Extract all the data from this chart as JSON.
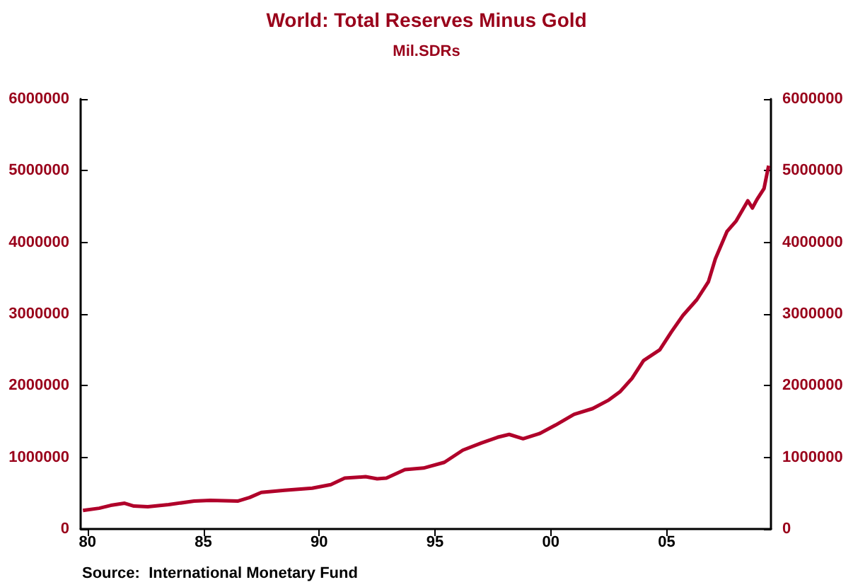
{
  "chart_data": {
    "type": "line",
    "title": "World: Total Reserves Minus Gold",
    "subtitle": "Mil.SDRs",
    "annotations": [
      "Source:  International Monetary Fund"
    ],
    "x": [
      1979.8,
      1980.5,
      1981.0,
      1981.6,
      1982.0,
      1982.6,
      1983.5,
      1984.6,
      1985.3,
      1986.5,
      1987.0,
      1987.5,
      1988.5,
      1989.7,
      1990.5,
      1991.1,
      1992.0,
      1992.5,
      1992.9,
      1993.7,
      1994.5,
      1995.4,
      1996.2,
      1997.0,
      1997.7,
      1998.2,
      1998.8,
      1999.5,
      2000.2,
      2001.0,
      2001.8,
      2002.5,
      2003.0,
      2003.5,
      2004.0,
      2004.7,
      2005.2,
      2005.7,
      2006.3,
      2006.8,
      2007.1,
      2007.6,
      2008.0,
      2008.5,
      2008.7,
      2008.9,
      2009.2,
      2009.4
    ],
    "series": [
      {
        "color": "#b0002a",
        "values": [
          260000,
          290000,
          330000,
          360000,
          320000,
          310000,
          340000,
          390000,
          400000,
          390000,
          440000,
          510000,
          540000,
          570000,
          620000,
          710000,
          730000,
          700000,
          710000,
          830000,
          850000,
          930000,
          1100000,
          1200000,
          1280000,
          1320000,
          1260000,
          1330000,
          1450000,
          1600000,
          1680000,
          1800000,
          1920000,
          2100000,
          2350000,
          2500000,
          2750000,
          2980000,
          3200000,
          3450000,
          3770000,
          4150000,
          4300000,
          4580000,
          4480000,
          4600000,
          4750000,
          5070000
        ]
      }
    ],
    "xlim": [
      1979.7,
      2009.5
    ],
    "xticks": [
      {
        "value": 1980,
        "label": "80"
      },
      {
        "value": 1985,
        "label": "85"
      },
      {
        "value": 1990,
        "label": "90"
      },
      {
        "value": 1995,
        "label": "95"
      },
      {
        "value": 2000,
        "label": "00"
      },
      {
        "value": 2005,
        "label": "05"
      }
    ],
    "ylim": [
      0,
      6000000
    ],
    "yticks": [
      0,
      1000000,
      2000000,
      3000000,
      4000000,
      5000000,
      6000000
    ],
    "y2lim": [
      0,
      6000000
    ],
    "y2ticks": [
      0,
      1000000,
      2000000,
      3000000,
      4000000,
      5000000,
      6000000
    ],
    "grid": false,
    "marker": "none",
    "line_style": "solid"
  }
}
